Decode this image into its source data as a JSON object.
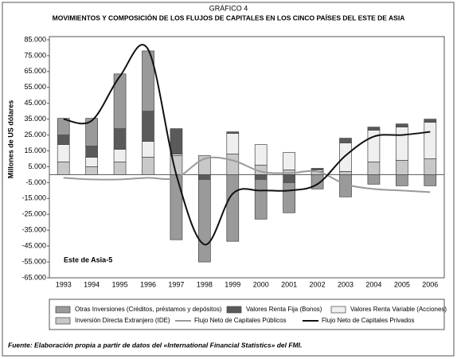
{
  "chart_data": {
    "type": "bar",
    "supertitle": "GRÁFICO 4",
    "title": "MOVIMIENTOS Y COMPOSICIÓN DE LOS FLUJOS DE CAPITALES EN LOS CINCO PAÍSES DEL ESTE DE ASIA",
    "y_label": "Millones de US dólares",
    "annotation": "Este de Asia-5",
    "source": "Fuente: Elaboración propia a partir de datos del «International Financial Statistics» del FMI.",
    "categories": [
      "1993",
      "1994",
      "1995",
      "1996",
      "1997",
      "1998",
      "1999",
      "2000",
      "2001",
      "2002",
      "2003",
      "2004",
      "2005",
      "2006"
    ],
    "ylim": [
      -65000,
      85000
    ],
    "yticks": [
      {
        "value": 85000,
        "label": "85.000"
      },
      {
        "value": 75000,
        "label": "75.000"
      },
      {
        "value": 65000,
        "label": "65.000"
      },
      {
        "value": 55000,
        "label": "55.000"
      },
      {
        "value": 45000,
        "label": "45.000"
      },
      {
        "value": 35000,
        "label": "35.000"
      },
      {
        "value": 25000,
        "label": "25.000"
      },
      {
        "value": 15000,
        "label": "15.000"
      },
      {
        "value": 5000,
        "label": "5.000"
      },
      {
        "value": -5000,
        "label": "-5.000"
      },
      {
        "value": -15000,
        "label": "-15.000"
      },
      {
        "value": -25000,
        "label": "-25.000"
      },
      {
        "value": -35000,
        "label": "-35.000"
      },
      {
        "value": -45000,
        "label": "-45.000"
      },
      {
        "value": -55000,
        "label": "-55.000"
      },
      {
        "value": -65000,
        "label": "-65.000"
      }
    ],
    "series": [
      {
        "name": "Otras Inversiones (Créditos, préstamos y depósitos)",
        "type": "bar",
        "color": "#9a9a9a",
        "values": [
          10500,
          17500,
          34500,
          38000,
          -41000,
          -52000,
          -42000,
          -25000,
          -19000,
          -9000,
          -14000,
          -6000,
          -7000,
          -7000
        ]
      },
      {
        "name": "Valores Renta Fija (Bonos)",
        "type": "bar",
        "color": "#5a5a5a",
        "values": [
          6000,
          7000,
          13000,
          19000,
          16000,
          -3000,
          1000,
          -3000,
          -5000,
          1000,
          3000,
          2000,
          2000,
          2000
        ]
      },
      {
        "name": "Valores Renta Variable (Acciones)",
        "type": "bar",
        "color": "#efefef",
        "values": [
          11000,
          6000,
          8000,
          10000,
          1000,
          0,
          13000,
          13000,
          11000,
          1000,
          18000,
          20000,
          21000,
          23000
        ]
      },
      {
        "name": "Inversión Directa Extranjero (IDE)",
        "type": "bar",
        "color": "#c8c8c8",
        "values": [
          8000,
          5000,
          8000,
          11000,
          12000,
          12000,
          13000,
          6000,
          3000,
          2000,
          2000,
          8000,
          9000,
          10000
        ]
      },
      {
        "name": "Flujo Neto de Capitales Públicos",
        "type": "line",
        "color": "#9a9a9a",
        "values": [
          -2000,
          -3000,
          -3000,
          -2000,
          -2000,
          10000,
          9000,
          2000,
          1000,
          2000,
          -6000,
          -9000,
          -10000,
          -11000
        ]
      },
      {
        "name": "Flujo Neto de Capitales Privados",
        "type": "line",
        "color": "#111111",
        "values": [
          35000,
          34000,
          62000,
          79000,
          0,
          -44000,
          -12000,
          -10000,
          -10000,
          -6000,
          12000,
          24000,
          25000,
          27000
        ]
      }
    ]
  }
}
